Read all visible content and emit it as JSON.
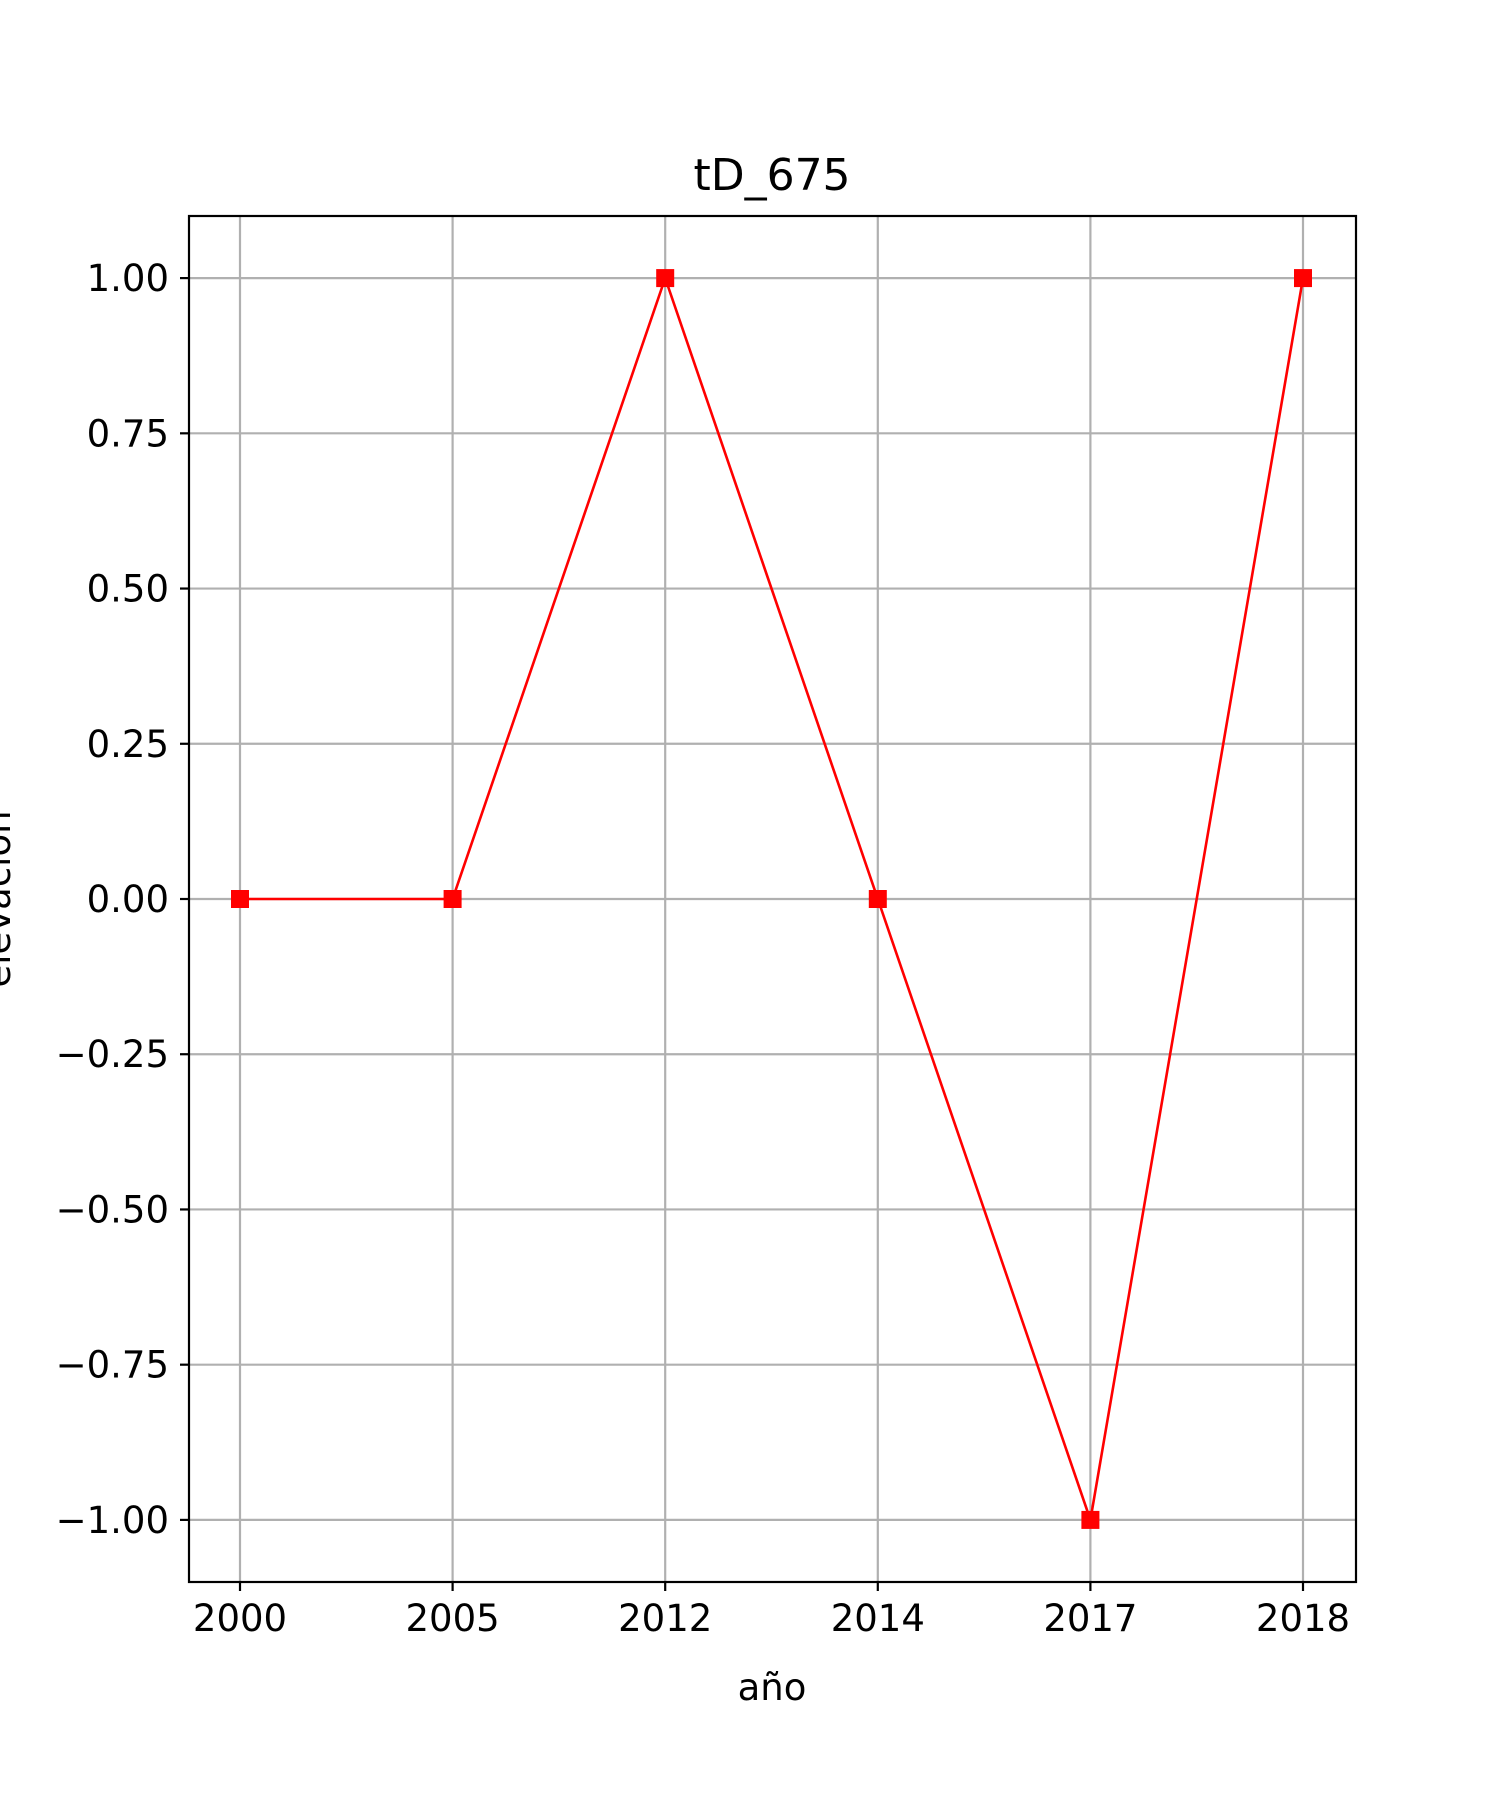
{
  "chart_data": {
    "type": "line",
    "title": "tD_675",
    "xlabel": "año",
    "ylabel": "elevación",
    "categories": [
      "2000",
      "2005",
      "2012",
      "2014",
      "2017",
      "2018"
    ],
    "series": [
      {
        "values": [
          0,
          0,
          1,
          0,
          -1,
          1
        ]
      }
    ],
    "ylim": [
      -1.1,
      1.1
    ],
    "yticks": [
      1.0,
      0.75,
      0.5,
      0.25,
      0.0,
      -0.25,
      -0.5,
      -0.75,
      -1.0
    ],
    "ytick_labels": [
      "1.00",
      "0.75",
      "0.50",
      "0.25",
      "0.00",
      "−0.25",
      "−0.50",
      "−0.75",
      "−1.00"
    ],
    "grid": true,
    "line_color": "#ff0000",
    "marker": "square"
  }
}
